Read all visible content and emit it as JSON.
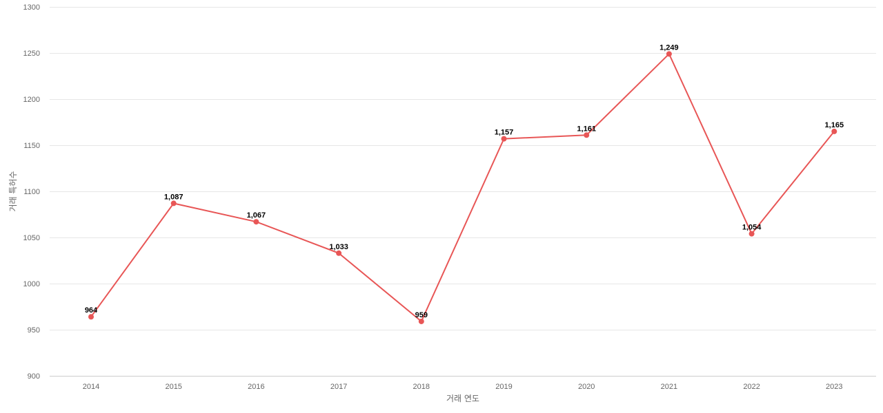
{
  "chart_data": {
    "type": "line",
    "title": "",
    "xlabel": "거래 연도",
    "ylabel": "거래 특허수",
    "categories": [
      "2014",
      "2015",
      "2016",
      "2017",
      "2018",
      "2019",
      "2020",
      "2021",
      "2022",
      "2023"
    ],
    "series": [
      {
        "values": [
          964,
          1087,
          1067,
          1033,
          959,
          1157,
          1161,
          1249,
          1054,
          1165
        ],
        "value_labels": [
          "964",
          "1,087",
          "1,067",
          "1,033",
          "959",
          "1,157",
          "1,161",
          "1,249",
          "1,054",
          "1,165"
        ],
        "color": "#e85656"
      }
    ],
    "ylim": [
      900,
      1300
    ],
    "yticks": [
      "900",
      "950",
      "1000",
      "1050",
      "1100",
      "1150",
      "1200",
      "1250",
      "1300"
    ],
    "grid": true,
    "legend": "none"
  }
}
